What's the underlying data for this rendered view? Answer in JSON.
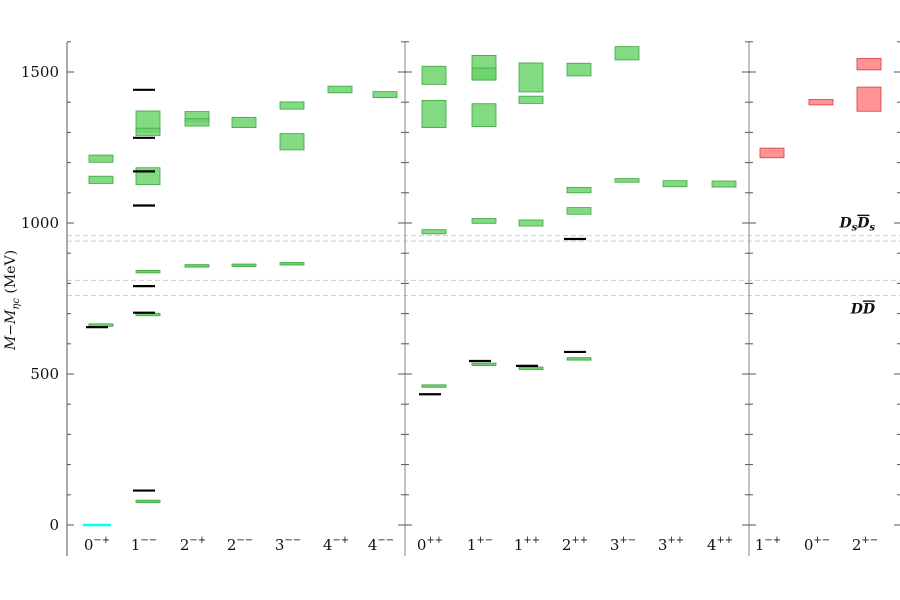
{
  "chart_data": {
    "type": "spectrum",
    "ylabel": "M−M_{ηc} (MeV)",
    "ylim": [
      -90,
      1620
    ],
    "yticks": [
      0,
      500,
      1000,
      1500
    ],
    "grid": false,
    "panels": [
      {
        "categories": [
          {
            "base": "0",
            "sup": "−+"
          },
          {
            "base": "1",
            "sup": "−−"
          },
          {
            "base": "2",
            "sup": "−+"
          },
          {
            "base": "2",
            "sup": "−−"
          },
          {
            "base": "3",
            "sup": "−−"
          },
          {
            "base": "4",
            "sup": "−+"
          },
          {
            "base": "4",
            "sup": "−−"
          }
        ]
      },
      {
        "categories": [
          {
            "base": "0",
            "sup": "++"
          },
          {
            "base": "1",
            "sup": "+−"
          },
          {
            "base": "1",
            "sup": "++"
          },
          {
            "base": "2",
            "sup": "++"
          },
          {
            "base": "3",
            "sup": "+−"
          },
          {
            "base": "3",
            "sup": "++"
          },
          {
            "base": "4",
            "sup": "++"
          }
        ]
      },
      {
        "categories": [
          {
            "base": "1",
            "sup": "−+"
          },
          {
            "base": "0",
            "sup": "+−"
          },
          {
            "base": "2",
            "sup": "+−"
          }
        ]
      }
    ],
    "thresholds": [
      {
        "value": 760,
        "label_base": "D",
        "label_bar": "D"
      },
      {
        "value": 810
      },
      {
        "value": 940
      },
      {
        "value": 958,
        "label_base": "D",
        "label_sub": "s",
        "label_bar": "D",
        "label_bar_sub": "s"
      }
    ],
    "colors": {
      "lattice": "#6cd36c",
      "exotic": "#ff8080",
      "experiment": "#000000",
      "reference": "#00ffff"
    },
    "lattice_boxes": [
      {
        "panel": 0,
        "cat": 0,
        "center": 1213,
        "err": 12
      },
      {
        "panel": 0,
        "cat": 0,
        "center": 1143,
        "err": 12
      },
      {
        "panel": 0,
        "cat": 0,
        "center": 662,
        "err": 3,
        "thin": true
      },
      {
        "panel": 0,
        "cat": 1,
        "center": 1336,
        "err": 35
      },
      {
        "panel": 0,
        "cat": 1,
        "center": 1302,
        "err": 12
      },
      {
        "panel": 0,
        "cat": 1,
        "center": 1155,
        "err": 28
      },
      {
        "panel": 0,
        "cat": 1,
        "center": 839,
        "err": 3,
        "thin": true
      },
      {
        "panel": 0,
        "cat": 1,
        "center": 697,
        "err": 3,
        "thin": true
      },
      {
        "panel": 0,
        "cat": 1,
        "center": 78,
        "err": 2,
        "thin": true
      },
      {
        "panel": 0,
        "cat": 2,
        "center": 1352,
        "err": 17
      },
      {
        "panel": 0,
        "cat": 2,
        "center": 1333,
        "err": 12
      },
      {
        "panel": 0,
        "cat": 2,
        "center": 858,
        "err": 3,
        "thin": true
      },
      {
        "panel": 0,
        "cat": 3,
        "center": 1333,
        "err": 17
      },
      {
        "panel": 0,
        "cat": 3,
        "center": 860,
        "err": 4,
        "thin": true
      },
      {
        "panel": 0,
        "cat": 4,
        "center": 1389,
        "err": 12
      },
      {
        "panel": 0,
        "cat": 4,
        "center": 1269,
        "err": 27
      },
      {
        "panel": 0,
        "cat": 4,
        "center": 865,
        "err": 3,
        "thin": true
      },
      {
        "panel": 0,
        "cat": 5,
        "center": 1442,
        "err": 11
      },
      {
        "panel": 0,
        "cat": 6,
        "center": 1425,
        "err": 10
      },
      {
        "panel": 1,
        "cat": 0,
        "center": 1489,
        "err": 30
      },
      {
        "panel": 1,
        "cat": 0,
        "center": 1361,
        "err": 45
      },
      {
        "panel": 1,
        "cat": 0,
        "center": 971,
        "err": 7
      },
      {
        "panel": 1,
        "cat": 0,
        "center": 460,
        "err": 3,
        "thin": true
      },
      {
        "panel": 1,
        "cat": 1,
        "center": 1515,
        "err": 40
      },
      {
        "panel": 1,
        "cat": 1,
        "center": 1493,
        "err": 20
      },
      {
        "panel": 1,
        "cat": 1,
        "center": 1357,
        "err": 38
      },
      {
        "panel": 1,
        "cat": 1,
        "center": 1007,
        "err": 8
      },
      {
        "panel": 1,
        "cat": 1,
        "center": 532,
        "err": 3,
        "thin": true
      },
      {
        "panel": 1,
        "cat": 2,
        "center": 1482,
        "err": 48
      },
      {
        "panel": 1,
        "cat": 2,
        "center": 1408,
        "err": 12
      },
      {
        "panel": 1,
        "cat": 2,
        "center": 1000,
        "err": 10
      },
      {
        "panel": 1,
        "cat": 2,
        "center": 519,
        "err": 3,
        "thin": true
      },
      {
        "panel": 1,
        "cat": 3,
        "center": 1508,
        "err": 21
      },
      {
        "panel": 1,
        "cat": 3,
        "center": 1109,
        "err": 9
      },
      {
        "panel": 1,
        "cat": 3,
        "center": 1040,
        "err": 11
      },
      {
        "panel": 1,
        "cat": 3,
        "center": 550,
        "err": 3,
        "thin": true
      },
      {
        "panel": 1,
        "cat": 4,
        "center": 1562,
        "err": 22
      },
      {
        "panel": 1,
        "cat": 4,
        "center": 1141,
        "err": 6
      },
      {
        "panel": 1,
        "cat": 5,
        "center": 1130,
        "err": 10
      },
      {
        "panel": 1,
        "cat": 6,
        "center": 1129,
        "err": 10
      }
    ],
    "exotic_boxes": [
      {
        "panel": 2,
        "cat": 0,
        "center": 1232,
        "err": 16
      },
      {
        "panel": 2,
        "cat": 1,
        "center": 1400,
        "err": 9
      },
      {
        "panel": 2,
        "cat": 2,
        "center": 1526,
        "err": 19
      },
      {
        "panel": 2,
        "cat": 2,
        "center": 1410,
        "err": 40
      }
    ],
    "experimental_lines": [
      {
        "panel": 0,
        "cat": 0,
        "value": 655
      },
      {
        "panel": 0,
        "cat": 1,
        "value": 1441
      },
      {
        "panel": 0,
        "cat": 1,
        "value": 1282
      },
      {
        "panel": 0,
        "cat": 1,
        "value": 1171
      },
      {
        "panel": 0,
        "cat": 1,
        "value": 1058
      },
      {
        "panel": 0,
        "cat": 1,
        "value": 791
      },
      {
        "panel": 0,
        "cat": 1,
        "value": 703
      },
      {
        "panel": 0,
        "cat": 1,
        "value": 114
      },
      {
        "panel": 1,
        "cat": 0,
        "value": 433
      },
      {
        "panel": 1,
        "cat": 1,
        "value": 543
      },
      {
        "panel": 1,
        "cat": 2,
        "value": 527
      },
      {
        "panel": 1,
        "cat": 3,
        "value": 947
      },
      {
        "panel": 1,
        "cat": 3,
        "value": 573
      }
    ],
    "reference_lines": [
      {
        "panel": 0,
        "cat": 0,
        "value": 0
      }
    ]
  }
}
